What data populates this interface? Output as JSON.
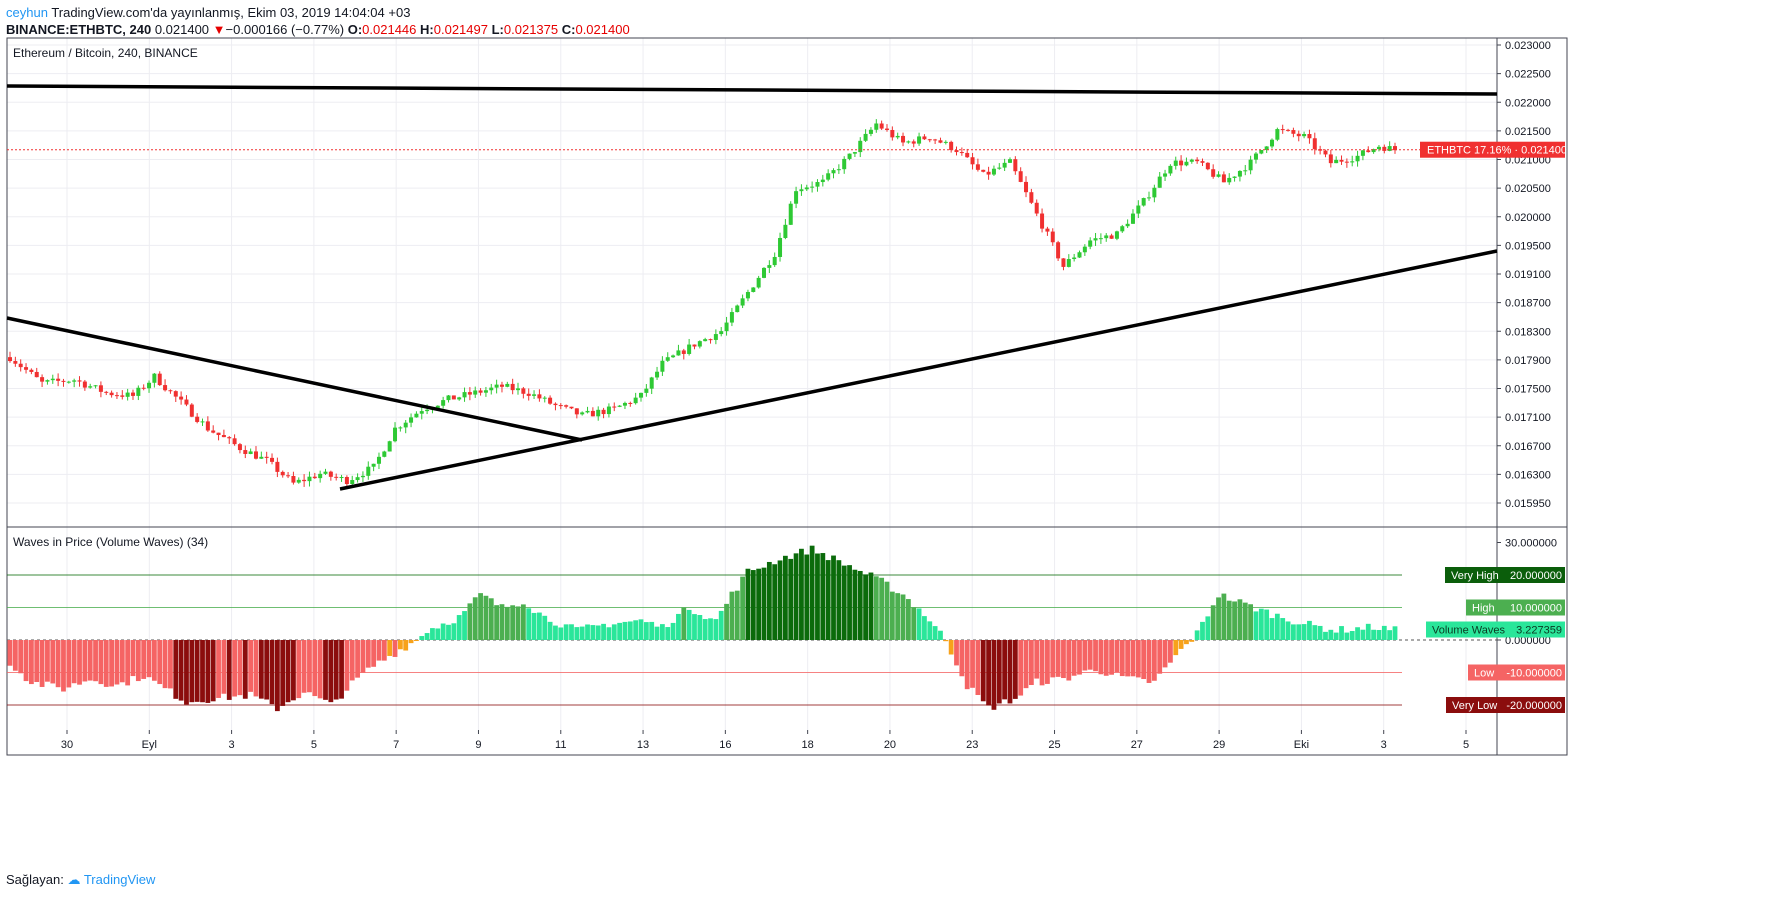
{
  "header": {
    "user": "ceyhun",
    "published": "TradingView.com'da yayınlanmış, Ekim 03, 2019 14:04:04 +03",
    "symbol": "BINANCE:ETHBTC, 240",
    "last": "0.021400",
    "change": "−0.000166 (−0.77%)",
    "o_label": "O:",
    "o_val": "0.021446",
    "h_label": "H:",
    "h_val": "0.021497",
    "l_label": "L:",
    "l_val": "0.021375",
    "c_label": "C:",
    "c_val": "0.021400"
  },
  "footer": {
    "label": "Sağlayan:",
    "brand": "TradingView"
  },
  "colors": {
    "up": "#2ec934",
    "down": "#f03030",
    "grid": "#ededf2",
    "trend": "#000000",
    "wave_red": "#f56464",
    "wave_darkred": "#8b0d0d",
    "wave_orange": "#f7a21b",
    "wave_mint": "#2ae69a",
    "wave_green": "#4caf50",
    "wave_darkgreen": "#0b6b0b"
  },
  "chart_data": [
    {
      "type": "candlestick",
      "title": "Ethereum / Bitcoin, 240, BINANCE",
      "ylim": [
        0.0156,
        0.0231
      ],
      "y_ticks": [
        "0.023000",
        "0.022500",
        "0.022000",
        "0.021500",
        "0.021000",
        "0.020500",
        "0.020000",
        "0.019500",
        "0.019100",
        "0.018700",
        "0.018300",
        "0.017900",
        "0.017500",
        "0.017100",
        "0.016700",
        "0.016300",
        "0.015950"
      ],
      "x_ticks": [
        "30",
        "Eyl",
        "3",
        "5",
        "7",
        "9",
        "11",
        "13",
        "16",
        "18",
        "20",
        "23",
        "25",
        "27",
        "29",
        "Eki",
        "3",
        "5"
      ],
      "price_label": "ETHBTC 17.16% · 0.021400",
      "last_price": 0.0214,
      "anchors": [
        [
          0,
          0.0182
        ],
        [
          6,
          0.0178
        ],
        [
          12,
          0.01785
        ],
        [
          18,
          0.01765
        ],
        [
          23,
          0.0176
        ],
        [
          27,
          0.0179
        ],
        [
          32,
          0.0175
        ],
        [
          37,
          0.0171
        ],
        [
          43,
          0.0168
        ],
        [
          48,
          0.0166
        ],
        [
          53,
          0.01625
        ],
        [
          58,
          0.0164
        ],
        [
          63,
          0.0163
        ],
        [
          68,
          0.0165
        ],
        [
          72,
          0.0171
        ],
        [
          77,
          0.0174
        ],
        [
          82,
          0.01755
        ],
        [
          87,
          0.01765
        ],
        [
          92,
          0.01775
        ],
        [
          97,
          0.01765
        ],
        [
          102,
          0.01745
        ],
        [
          107,
          0.0173
        ],
        [
          113,
          0.0174
        ],
        [
          118,
          0.0176
        ],
        [
          122,
          0.0181
        ],
        [
          128,
          0.0184
        ],
        [
          133,
          0.0186
        ],
        [
          138,
          0.0192
        ],
        [
          143,
          0.0198
        ],
        [
          147,
          0.0208
        ],
        [
          152,
          0.0209
        ],
        [
          157,
          0.0213
        ],
        [
          162,
          0.0218
        ],
        [
          167,
          0.0215
        ],
        [
          172,
          0.0216
        ],
        [
          177,
          0.0214
        ],
        [
          182,
          0.021
        ],
        [
          187,
          0.0212
        ],
        [
          192,
          0.0204
        ],
        [
          197,
          0.0196
        ],
        [
          202,
          0.02
        ],
        [
          207,
          0.0201
        ],
        [
          212,
          0.0206
        ],
        [
          217,
          0.0212
        ],
        [
          222,
          0.0212
        ],
        [
          227,
          0.0209
        ],
        [
          232,
          0.0212
        ],
        [
          237,
          0.0217
        ],
        [
          242,
          0.0216
        ],
        [
          247,
          0.0212
        ],
        [
          252,
          0.0213
        ],
        [
          256,
          0.02146
        ],
        [
          259,
          0.0214
        ]
      ]
    },
    {
      "type": "bar",
      "title": "Waves in Price (Volume Waves) (34)",
      "ylim": [
        -26,
        33
      ],
      "y_ticks": [
        "30.000000",
        "20.000000",
        "10.000000",
        "0.000000",
        "-10.000000",
        "-20.000000"
      ],
      "levels": [
        {
          "name": "Very High",
          "value": "20.000000"
        },
        {
          "name": "High",
          "value": "10.000000"
        },
        {
          "name": "Volume Waves",
          "value": "3.227359"
        },
        {
          "name": "Low",
          "value": "-10.000000"
        },
        {
          "name": "Very Low",
          "value": "-20.000000"
        }
      ],
      "anchors": [
        [
          0,
          -7
        ],
        [
          4,
          -13
        ],
        [
          10,
          -15
        ],
        [
          15,
          -12
        ],
        [
          20,
          -14
        ],
        [
          25,
          -11
        ],
        [
          30,
          -16
        ],
        [
          33,
          -19
        ],
        [
          38,
          -18
        ],
        [
          45,
          -17
        ],
        [
          50,
          -21
        ],
        [
          55,
          -16
        ],
        [
          60,
          -20
        ],
        [
          65,
          -12
        ],
        [
          68,
          -8
        ],
        [
          72,
          -4
        ],
        [
          76,
          0
        ],
        [
          78,
          3
        ],
        [
          84,
          7
        ],
        [
          88,
          14
        ],
        [
          92,
          10
        ],
        [
          96,
          12
        ],
        [
          100,
          7
        ],
        [
          106,
          3
        ],
        [
          112,
          5
        ],
        [
          118,
          6
        ],
        [
          122,
          4
        ],
        [
          127,
          10
        ],
        [
          132,
          6
        ],
        [
          135,
          14
        ],
        [
          138,
          21
        ],
        [
          144,
          25
        ],
        [
          150,
          28
        ],
        [
          154,
          25
        ],
        [
          158,
          22
        ],
        [
          163,
          18
        ],
        [
          167,
          14
        ],
        [
          171,
          8
        ],
        [
          175,
          0
        ],
        [
          179,
          -14
        ],
        [
          183,
          -21
        ],
        [
          188,
          -18
        ],
        [
          192,
          -13
        ],
        [
          197,
          -12
        ],
        [
          203,
          -9
        ],
        [
          209,
          -12
        ],
        [
          214,
          -13
        ],
        [
          218,
          -5
        ],
        [
          222,
          2
        ],
        [
          226,
          14
        ],
        [
          231,
          11
        ],
        [
          236,
          8
        ],
        [
          242,
          5
        ],
        [
          248,
          3
        ],
        [
          255,
          4
        ],
        [
          259,
          3
        ]
      ]
    }
  ]
}
